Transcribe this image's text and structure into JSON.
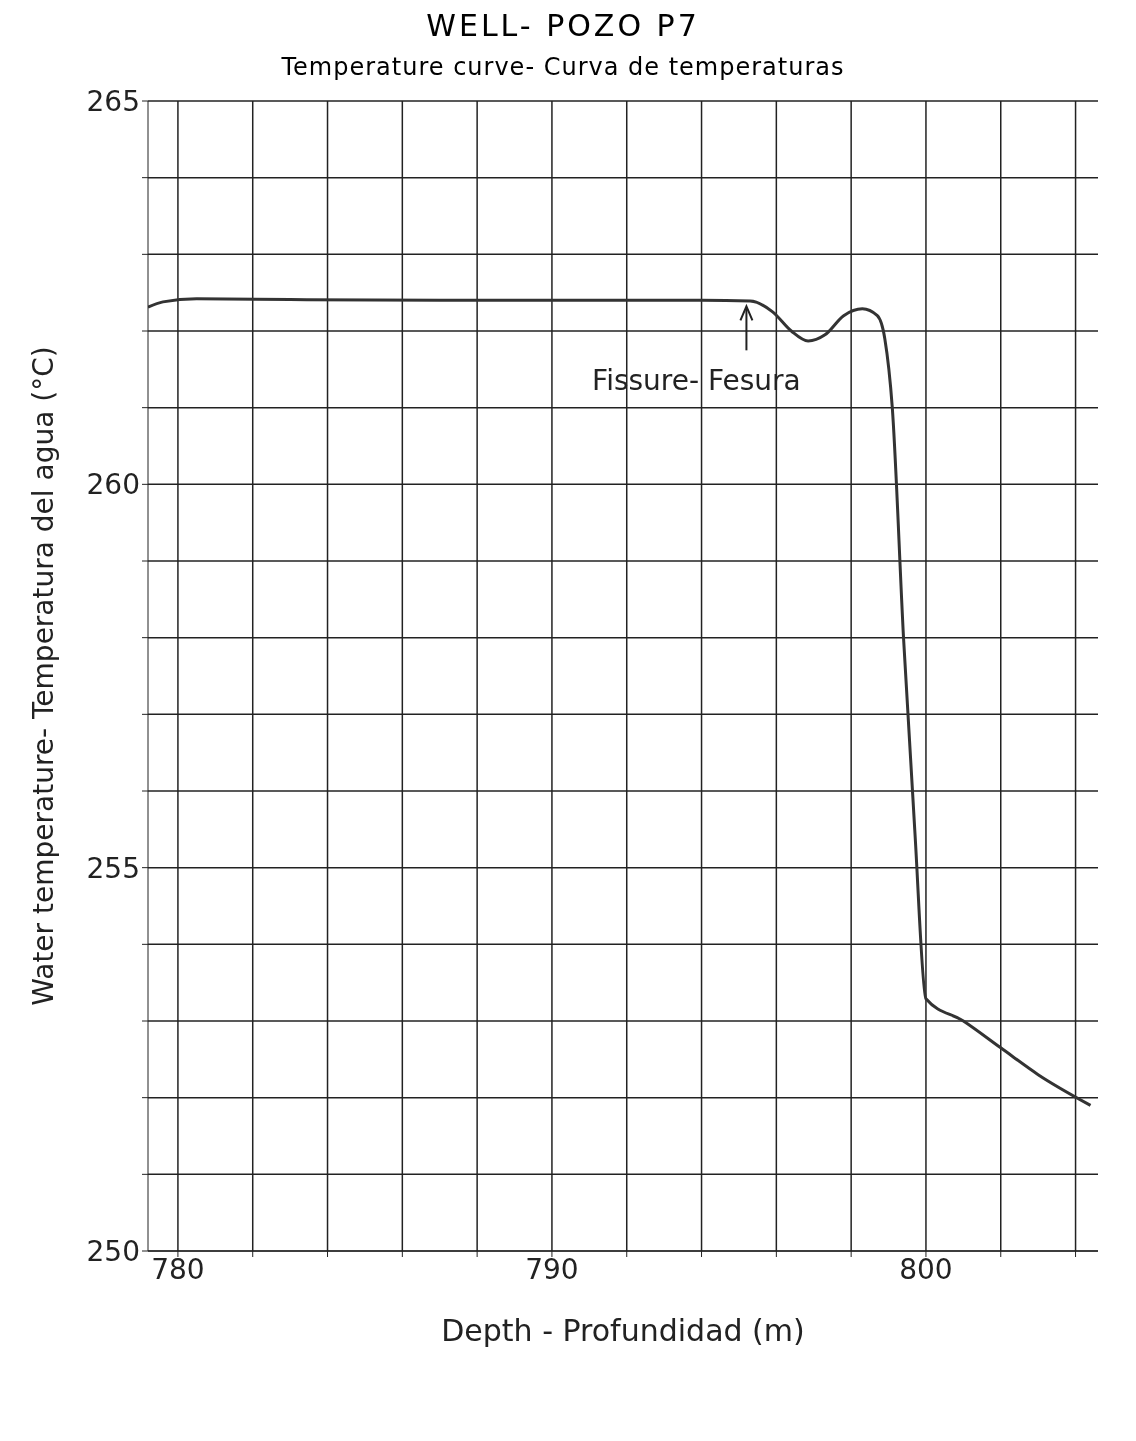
{
  "chart_data": {
    "type": "line",
    "title": "WELL- POZO P7",
    "subtitle": "Temperature curve- Curva de temperaturas",
    "xlabel": "Depth - Profundidad (m)",
    "ylabel": "Water temperature- Temperatura del agua (°C)",
    "series": [
      {
        "color": "#333333",
        "x": [
          779.2,
          779.6,
          780.5,
          783,
          787,
          791,
          794,
          795.3,
          795.9,
          796.4,
          796.85,
          797.3,
          797.8,
          798.3,
          798.7,
          798.9,
          799.1,
          799.4,
          799.7,
          800,
          801,
          802,
          803,
          804.4
        ],
        "values": [
          262.31,
          262.38,
          262.42,
          262.41,
          262.4,
          262.4,
          262.4,
          262.39,
          262.25,
          262.0,
          261.87,
          261.95,
          262.2,
          262.29,
          262.2,
          261.9,
          261.0,
          258.0,
          255.5,
          253.29,
          253.0,
          252.65,
          252.3,
          251.9
        ]
      }
    ],
    "xlim": [
      779.2,
      804.6
    ],
    "xticks": [
      780,
      {
        "value": 782,
        "label": null
      },
      {
        "value": 784,
        "label": null
      },
      {
        "value": 786,
        "label": null
      },
      {
        "value": 788,
        "label": null
      },
      790,
      {
        "value": 792,
        "label": null
      },
      {
        "value": 794,
        "label": null
      },
      {
        "value": 796,
        "label": null
      },
      {
        "value": 798,
        "label": null
      },
      800,
      {
        "value": 802,
        "label": null
      },
      {
        "value": 804,
        "label": null
      }
    ],
    "ylim": [
      250,
      265
    ],
    "yticks": [
      250,
      {
        "value": 251,
        "label": null
      },
      {
        "value": 252,
        "label": null
      },
      {
        "value": 253,
        "label": null
      },
      {
        "value": 254,
        "label": null
      },
      255,
      {
        "value": 256,
        "label": null
      },
      {
        "value": 257,
        "label": null
      },
      {
        "value": 258,
        "label": null
      },
      {
        "value": 259,
        "label": null
      },
      260,
      {
        "value": 261,
        "label": null
      },
      {
        "value": 262,
        "label": null
      },
      {
        "value": 263,
        "label": null
      },
      {
        "value": 264,
        "label": null
      },
      265
    ],
    "grid": true,
    "marker": "none",
    "line_style": "solid",
    "annotations": [
      {
        "text": "Fissure- Fesura",
        "x": 795.2,
        "y": 262.4
      }
    ]
  }
}
